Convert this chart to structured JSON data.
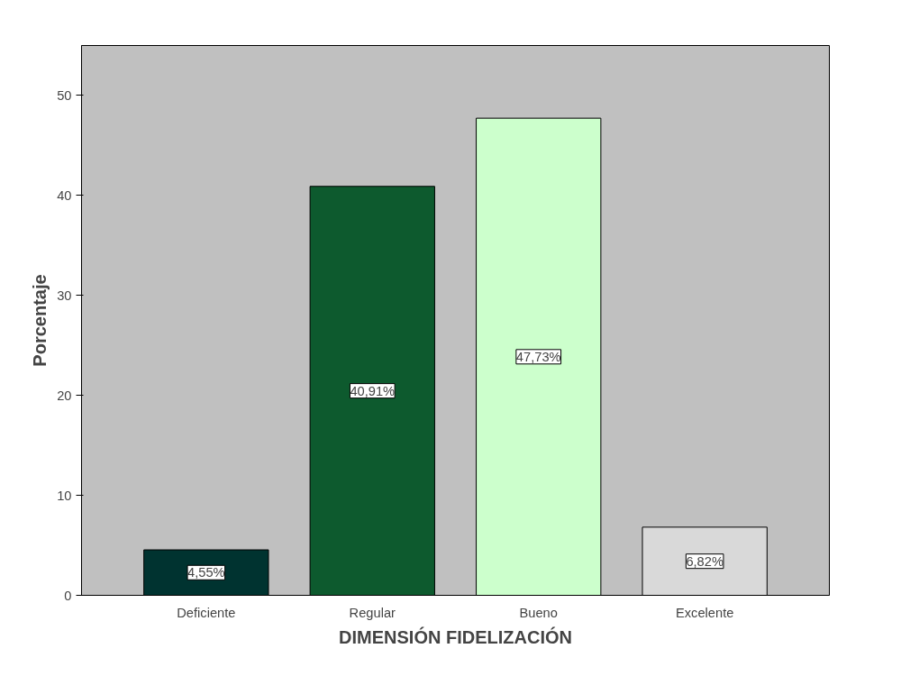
{
  "chart_data": {
    "type": "bar",
    "xlabel": "DIMENSIÓN FIDELIZACIÓN",
    "ylabel": "Porcentaje",
    "categories": [
      "Deficiente",
      "Regular",
      "Bueno",
      "Excelente"
    ],
    "values": [
      4.55,
      40.91,
      47.73,
      6.82
    ],
    "colors": [
      "#003330",
      "#0d5a2e",
      "#ccffcc",
      "#d9d9d9"
    ],
    "value_labels": [
      "4,55%",
      "40,91%",
      "47,73%",
      "6,82%"
    ],
    "ylim": [
      0,
      55
    ],
    "yticks": [
      0,
      10,
      20,
      30,
      40,
      50
    ],
    "grid": false
  }
}
